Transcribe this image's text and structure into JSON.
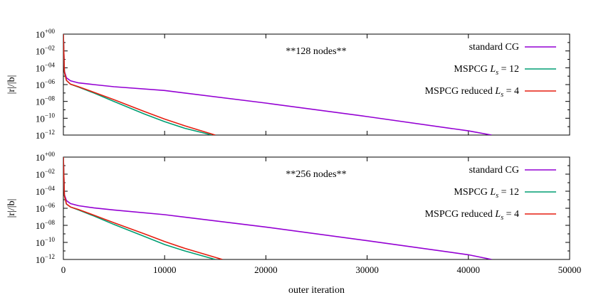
{
  "chart_data": [
    {
      "type": "line",
      "title": "",
      "annotation": "**128 nodes**",
      "xlabel": "",
      "ylabel": "|r|/|b|",
      "xlim": [
        0,
        50000
      ],
      "ylim_exp": [
        -12,
        0
      ],
      "yscale": "log",
      "x_ticks": [],
      "y_ticks": [
        {
          "exp": 0,
          "label": "10",
          "sup": "+00"
        },
        {
          "exp": -2,
          "label": "10",
          "sup": "−02"
        },
        {
          "exp": -4,
          "label": "10",
          "sup": "−04"
        },
        {
          "exp": -6,
          "label": "10",
          "sup": "−06"
        },
        {
          "exp": -8,
          "label": "10",
          "sup": "−08"
        },
        {
          "exp": -10,
          "label": "10",
          "sup": "−10"
        },
        {
          "exp": -12,
          "label": "10",
          "sup": "−12"
        }
      ],
      "legend_position": "top-right",
      "series": [
        {
          "name": "standard CG",
          "legend": {
            "pre": "standard CG",
            "sym": "",
            "sub": "",
            "post": ""
          },
          "color": "#9400d3",
          "x": [
            0,
            100,
            300,
            700,
            1500,
            3000,
            5000,
            10000,
            20000,
            30000,
            40000,
            42300
          ],
          "y_exp": [
            0,
            -4.4,
            -5.2,
            -5.55,
            -5.8,
            -6.0,
            -6.25,
            -6.7,
            -8.2,
            -9.8,
            -11.5,
            -12
          ]
        },
        {
          "name": "MSPCG L_s = 12",
          "legend": {
            "pre": "MSPCG ",
            "sym": "L",
            "sub": "s",
            "post": " = 12"
          },
          "color": "#009e73",
          "x": [
            0,
            100,
            300,
            700,
            1500,
            3000,
            5000,
            8000,
            10000,
            12000,
            14700
          ],
          "y_exp": [
            0,
            -4.5,
            -5.5,
            -5.95,
            -6.3,
            -7.0,
            -8.0,
            -9.5,
            -10.4,
            -11.2,
            -12
          ]
        },
        {
          "name": "MSPCG reduced L_s = 4",
          "legend": {
            "pre": "MSPCG reduced ",
            "sym": "L",
            "sub": "s",
            "post": " = 4"
          },
          "color": "#e51e10",
          "x": [
            0,
            100,
            300,
            700,
            1500,
            3000,
            5000,
            8000,
            10000,
            12000,
            15000
          ],
          "y_exp": [
            0,
            -4.5,
            -5.5,
            -5.95,
            -6.25,
            -6.9,
            -7.8,
            -9.2,
            -10.1,
            -10.9,
            -12
          ]
        }
      ]
    },
    {
      "type": "line",
      "title": "",
      "annotation": "**256 nodes**",
      "xlabel": "outer iteration",
      "ylabel": "|r|/|b|",
      "xlim": [
        0,
        50000
      ],
      "ylim_exp": [
        -12,
        0
      ],
      "yscale": "log",
      "x_ticks": [
        {
          "value": 0,
          "label": "0"
        },
        {
          "value": 10000,
          "label": "10000"
        },
        {
          "value": 20000,
          "label": "20000"
        },
        {
          "value": 30000,
          "label": "30000"
        },
        {
          "value": 40000,
          "label": "40000"
        },
        {
          "value": 50000,
          "label": "50000"
        }
      ],
      "y_ticks": [
        {
          "exp": 0,
          "label": "10",
          "sup": "+00"
        },
        {
          "exp": -2,
          "label": "10",
          "sup": "−02"
        },
        {
          "exp": -4,
          "label": "10",
          "sup": "−04"
        },
        {
          "exp": -6,
          "label": "10",
          "sup": "−06"
        },
        {
          "exp": -8,
          "label": "10",
          "sup": "−08"
        },
        {
          "exp": -10,
          "label": "10",
          "sup": "−10"
        },
        {
          "exp": -12,
          "label": "10",
          "sup": "−12"
        }
      ],
      "legend_position": "top-right",
      "series": [
        {
          "name": "standard CG",
          "legend": {
            "pre": "standard CG",
            "sym": "",
            "sub": "",
            "post": ""
          },
          "color": "#9400d3",
          "x": [
            0,
            100,
            300,
            700,
            1500,
            3000,
            5000,
            10000,
            20000,
            30000,
            40000,
            42300
          ],
          "y_exp": [
            0,
            -4.4,
            -5.1,
            -5.45,
            -5.7,
            -5.95,
            -6.2,
            -6.75,
            -8.2,
            -9.8,
            -11.45,
            -12
          ]
        },
        {
          "name": "MSPCG L_s = 12",
          "legend": {
            "pre": "MSPCG ",
            "sym": "L",
            "sub": "s",
            "post": " = 12"
          },
          "color": "#009e73",
          "x": [
            0,
            100,
            300,
            700,
            1500,
            3000,
            5000,
            8000,
            10000,
            12000,
            15000
          ],
          "y_exp": [
            0,
            -4.5,
            -5.5,
            -5.85,
            -6.2,
            -6.9,
            -7.9,
            -9.3,
            -10.25,
            -11.0,
            -12
          ]
        },
        {
          "name": "MSPCG reduced L_s = 4",
          "legend": {
            "pre": "MSPCG reduced ",
            "sym": "L",
            "sub": "s",
            "post": " = 4"
          },
          "color": "#e51e10",
          "x": [
            0,
            100,
            300,
            700,
            1500,
            3000,
            5000,
            8000,
            10000,
            12000,
            15700
          ],
          "y_exp": [
            0,
            -4.5,
            -5.5,
            -5.85,
            -6.15,
            -6.8,
            -7.7,
            -9.0,
            -9.9,
            -10.7,
            -12
          ]
        }
      ]
    }
  ]
}
